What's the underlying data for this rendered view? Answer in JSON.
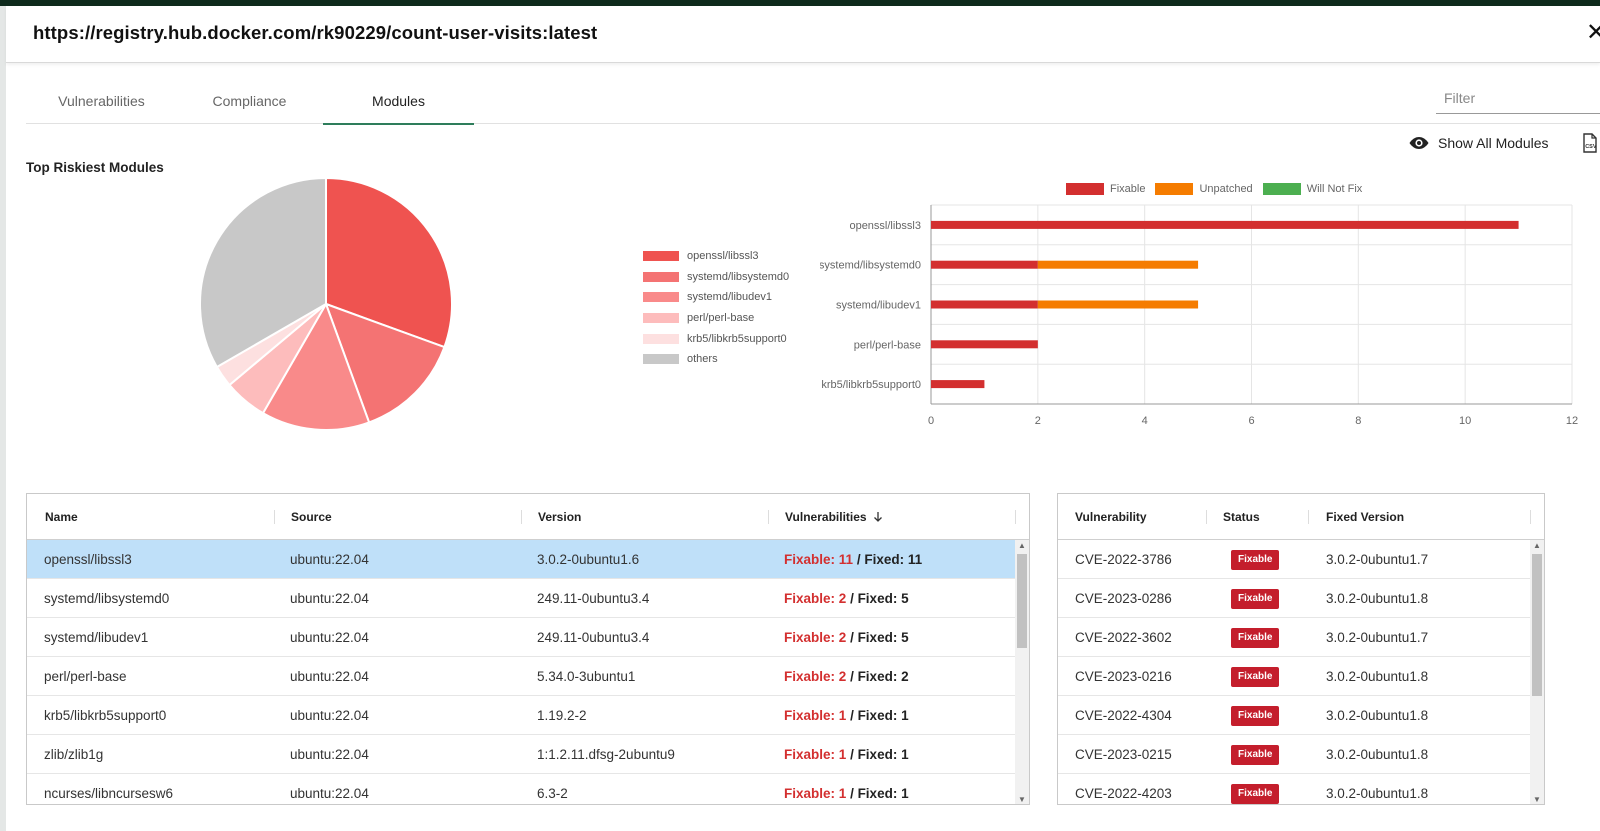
{
  "window": {
    "title": "https://registry.hub.docker.com/rk90229/count-user-visits:latest",
    "close_label": "✕"
  },
  "tabs": [
    {
      "label": "Vulnerabilities",
      "active": false
    },
    {
      "label": "Compliance",
      "active": false
    },
    {
      "label": "Modules",
      "active": true
    }
  ],
  "filter": {
    "placeholder": "Filter",
    "value": ""
  },
  "toolbar": {
    "show_all_label": "Show All Modules",
    "eye_icon": "eye-icon",
    "csv_icon": "csv-download-icon"
  },
  "section_title": "Top Riskiest Modules",
  "colors": {
    "fixable": "#d32f2f",
    "unpatched": "#f57c00",
    "will_not_fix": "#4caf50",
    "selected_row": "#bfe0f9",
    "tab_active": "#2e7d5b",
    "badge": "#c41e2c"
  },
  "chart_data": [
    {
      "type": "pie",
      "legend_position": "right",
      "slices": [
        {
          "label": "openssl/libssl3",
          "value": 11,
          "color": "#ef5350"
        },
        {
          "label": "systemd/libsystemd0",
          "value": 5,
          "color": "#f47373"
        },
        {
          "label": "systemd/libudev1",
          "value": 5,
          "color": "#f98a8a"
        },
        {
          "label": "perl/perl-base",
          "value": 2,
          "color": "#fdbcbc"
        },
        {
          "label": "krb5/libkrb5support0",
          "value": 1,
          "color": "#fde0e0"
        },
        {
          "label": "others",
          "value": 12,
          "color": "#c8c8c8"
        }
      ]
    },
    {
      "type": "bar",
      "orientation": "horizontal",
      "stacked": true,
      "legend_position": "top",
      "grid": true,
      "categories": [
        "openssl/libssl3",
        "systemd/libsystemd0",
        "systemd/libudev1",
        "perl/perl-base",
        "krb5/libkrb5support0"
      ],
      "series": [
        {
          "name": "Fixable",
          "color": "#d32f2f",
          "values": [
            11,
            2,
            2,
            2,
            1
          ]
        },
        {
          "name": "Unpatched",
          "color": "#f57c00",
          "values": [
            0,
            3,
            3,
            0,
            0
          ]
        },
        {
          "name": "Will Not Fix",
          "color": "#4caf50",
          "values": [
            0,
            0,
            0,
            0,
            0
          ]
        }
      ],
      "xlim": [
        0,
        12
      ],
      "xticks": [
        "0",
        "2",
        "4",
        "6",
        "8",
        "10",
        "12"
      ]
    }
  ],
  "modules_table": {
    "columns": [
      "Name",
      "Source",
      "Version",
      "Vulnerabilities"
    ],
    "sort_icon": "arrow-down-icon",
    "fixable_label": "Fixable:",
    "fixed_label": "/ Fixed:",
    "rows": [
      {
        "name": "openssl/libssl3",
        "source": "ubuntu:22.04",
        "version": "3.0.2-0ubuntu1.6",
        "fixable": "11",
        "fixed": "11",
        "selected": true
      },
      {
        "name": "systemd/libsystemd0",
        "source": "ubuntu:22.04",
        "version": "249.11-0ubuntu3.4",
        "fixable": "2",
        "fixed": "5"
      },
      {
        "name": "systemd/libudev1",
        "source": "ubuntu:22.04",
        "version": "249.11-0ubuntu3.4",
        "fixable": "2",
        "fixed": "5"
      },
      {
        "name": "perl/perl-base",
        "source": "ubuntu:22.04",
        "version": "5.34.0-3ubuntu1",
        "fixable": "2",
        "fixed": "2"
      },
      {
        "name": "krb5/libkrb5support0",
        "source": "ubuntu:22.04",
        "version": "1.19.2-2",
        "fixable": "1",
        "fixed": "1"
      },
      {
        "name": "zlib/zlib1g",
        "source": "ubuntu:22.04",
        "version": "1:1.2.11.dfsg-2ubuntu9",
        "fixable": "1",
        "fixed": "1"
      },
      {
        "name": "ncurses/libncursesw6",
        "source": "ubuntu:22.04",
        "version": "6.3-2",
        "fixable": "1",
        "fixed": "1"
      }
    ]
  },
  "vuln_table": {
    "columns": [
      "Vulnerability",
      "Status",
      "Fixed Version"
    ],
    "rows": [
      {
        "cve": "CVE-2022-3786",
        "status": "Fixable",
        "fixed_version": "3.0.2-0ubuntu1.7"
      },
      {
        "cve": "CVE-2023-0286",
        "status": "Fixable",
        "fixed_version": "3.0.2-0ubuntu1.8"
      },
      {
        "cve": "CVE-2022-3602",
        "status": "Fixable",
        "fixed_version": "3.0.2-0ubuntu1.7"
      },
      {
        "cve": "CVE-2023-0216",
        "status": "Fixable",
        "fixed_version": "3.0.2-0ubuntu1.8"
      },
      {
        "cve": "CVE-2022-4304",
        "status": "Fixable",
        "fixed_version": "3.0.2-0ubuntu1.8"
      },
      {
        "cve": "CVE-2023-0215",
        "status": "Fixable",
        "fixed_version": "3.0.2-0ubuntu1.8"
      },
      {
        "cve": "CVE-2022-4203",
        "status": "Fixable",
        "fixed_version": "3.0.2-0ubuntu1.8"
      }
    ]
  }
}
